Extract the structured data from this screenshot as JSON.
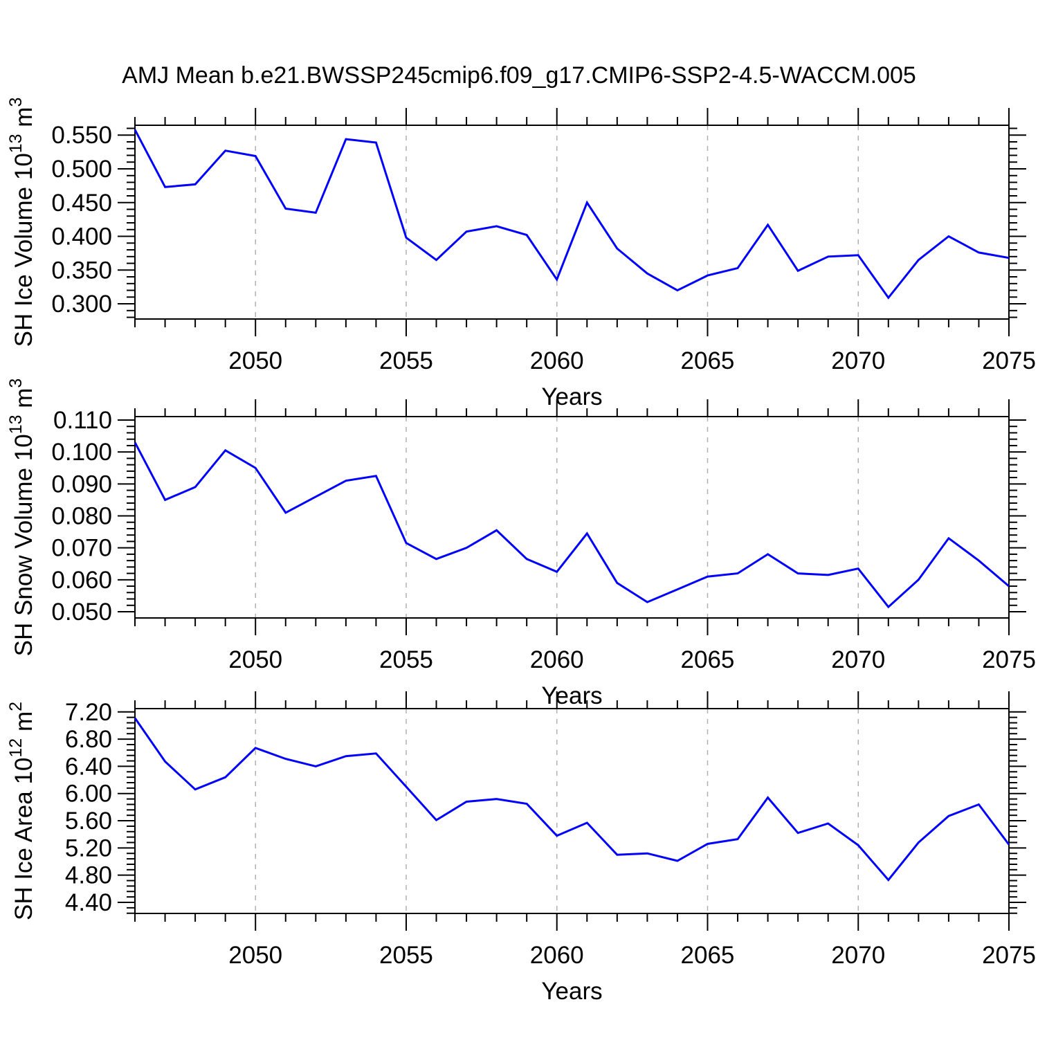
{
  "title": "AMJ Mean b.e21.BWSSP245cmip6.f09_g17.CMIP6-SSP2-4.5-WACCM.005",
  "colors": {
    "line": "#0000ff",
    "grid": "#b0b0b0",
    "axis": "#000000",
    "text": "#000000",
    "background": "#ffffff"
  },
  "years": [
    2046,
    2047,
    2048,
    2049,
    2050,
    2051,
    2052,
    2053,
    2054,
    2055,
    2056,
    2057,
    2058,
    2059,
    2060,
    2061,
    2062,
    2063,
    2064,
    2065,
    2066,
    2067,
    2068,
    2069,
    2070,
    2071,
    2072,
    2073,
    2074,
    2075
  ],
  "chart_data": [
    {
      "type": "line",
      "ylabel": "SH Ice Volume 10^13 m^3",
      "ylabel_parts": [
        {
          "text": "SH Ice Volume 10",
          "sup": false
        },
        {
          "text": "13",
          "sup": true
        },
        {
          "text": " m",
          "sup": false
        },
        {
          "text": "3",
          "sup": true
        }
      ],
      "xlabel": "Years",
      "values": [
        0.558,
        0.473,
        0.477,
        0.527,
        0.519,
        0.441,
        0.435,
        0.544,
        0.539,
        0.398,
        0.365,
        0.407,
        0.415,
        0.402,
        0.336,
        0.45,
        0.382,
        0.345,
        0.32,
        0.342,
        0.353,
        0.417,
        0.349,
        0.37,
        0.372,
        0.309,
        0.365,
        0.4,
        0.376,
        0.368
      ],
      "xlim": [
        2046,
        2075
      ],
      "ylim": [
        0.2775,
        0.5646
      ],
      "yticks": [
        {
          "v": 0.55,
          "label": "0.550"
        },
        {
          "v": 0.5,
          "label": "0.500"
        },
        {
          "v": 0.45,
          "label": "0.450"
        },
        {
          "v": 0.4,
          "label": "0.400"
        },
        {
          "v": 0.35,
          "label": "0.350"
        },
        {
          "v": 0.3,
          "label": "0.300"
        }
      ],
      "yminor_step": 0.01,
      "xticks": [
        {
          "v": 2050,
          "label": "2050"
        },
        {
          "v": 2055,
          "label": "2055"
        },
        {
          "v": 2060,
          "label": "2060"
        },
        {
          "v": 2065,
          "label": "2065"
        },
        {
          "v": 2070,
          "label": "2070"
        },
        {
          "v": 2075,
          "label": "2075"
        }
      ],
      "xminor_step": 1,
      "grid_x": [
        2050,
        2055,
        2060,
        2065,
        2070
      ],
      "legend": null
    },
    {
      "type": "line",
      "ylabel": "SH Snow Volume 10^13 m^3",
      "ylabel_parts": [
        {
          "text": "SH Snow Volume 10",
          "sup": false
        },
        {
          "text": "13",
          "sup": true
        },
        {
          "text": " m",
          "sup": false
        },
        {
          "text": "3",
          "sup": true
        }
      ],
      "xlabel": "Years",
      "values": [
        0.103,
        0.085,
        0.089,
        0.1005,
        0.095,
        0.081,
        0.086,
        0.091,
        0.0925,
        0.0715,
        0.0665,
        0.07,
        0.0755,
        0.0665,
        0.0625,
        0.0745,
        0.059,
        0.053,
        0.057,
        0.061,
        0.062,
        0.068,
        0.062,
        0.0615,
        0.0635,
        0.0515,
        0.06,
        0.073,
        0.066,
        0.058
      ],
      "xlim": [
        2046,
        2075
      ],
      "ylim": [
        0.04805,
        0.11108
      ],
      "yticks": [
        {
          "v": 0.11,
          "label": "0.110"
        },
        {
          "v": 0.1,
          "label": "0.100"
        },
        {
          "v": 0.09,
          "label": "0.090"
        },
        {
          "v": 0.08,
          "label": "0.080"
        },
        {
          "v": 0.07,
          "label": "0.070"
        },
        {
          "v": 0.06,
          "label": "0.060"
        },
        {
          "v": 0.05,
          "label": "0.050"
        }
      ],
      "yminor_step": 0.002,
      "xticks": [
        {
          "v": 2050,
          "label": "2050"
        },
        {
          "v": 2055,
          "label": "2055"
        },
        {
          "v": 2060,
          "label": "2060"
        },
        {
          "v": 2065,
          "label": "2065"
        },
        {
          "v": 2070,
          "label": "2070"
        },
        {
          "v": 2075,
          "label": "2075"
        }
      ],
      "xminor_step": 1,
      "grid_x": [
        2050,
        2055,
        2060,
        2065,
        2070
      ],
      "legend": null
    },
    {
      "type": "line",
      "ylabel": "SH Ice Area 10^12 m^2",
      "ylabel_parts": [
        {
          "text": "SH Ice Area 10",
          "sup": false
        },
        {
          "text": "12",
          "sup": true
        },
        {
          "text": " m",
          "sup": false
        },
        {
          "text": "2",
          "sup": true
        }
      ],
      "xlabel": "Years",
      "values": [
        7.11,
        6.47,
        6.06,
        6.24,
        6.67,
        6.51,
        6.4,
        6.55,
        6.59,
        6.1,
        5.61,
        5.88,
        5.92,
        5.85,
        5.38,
        5.57,
        5.1,
        5.12,
        5.01,
        5.26,
        5.33,
        5.94,
        5.42,
        5.56,
        5.24,
        4.73,
        5.28,
        5.67,
        5.84,
        5.25
      ],
      "xlim": [
        2046,
        2075
      ],
      "ylim": [
        4.2372,
        7.2488
      ],
      "yticks": [
        {
          "v": 7.2,
          "label": "7.20"
        },
        {
          "v": 6.8,
          "label": "6.80"
        },
        {
          "v": 6.4,
          "label": "6.40"
        },
        {
          "v": 6.0,
          "label": "6.00"
        },
        {
          "v": 5.6,
          "label": "5.60"
        },
        {
          "v": 5.2,
          "label": "5.20"
        },
        {
          "v": 4.8,
          "label": "4.80"
        },
        {
          "v": 4.4,
          "label": "4.40"
        }
      ],
      "yminor_step": 0.08,
      "xticks": [
        {
          "v": 2050,
          "label": "2050"
        },
        {
          "v": 2055,
          "label": "2055"
        },
        {
          "v": 2060,
          "label": "2060"
        },
        {
          "v": 2065,
          "label": "2065"
        },
        {
          "v": 2070,
          "label": "2070"
        },
        {
          "v": 2075,
          "label": "2075"
        }
      ],
      "xminor_step": 1,
      "grid_x": [
        2050,
        2055,
        2060,
        2065,
        2070
      ],
      "legend": null
    }
  ]
}
